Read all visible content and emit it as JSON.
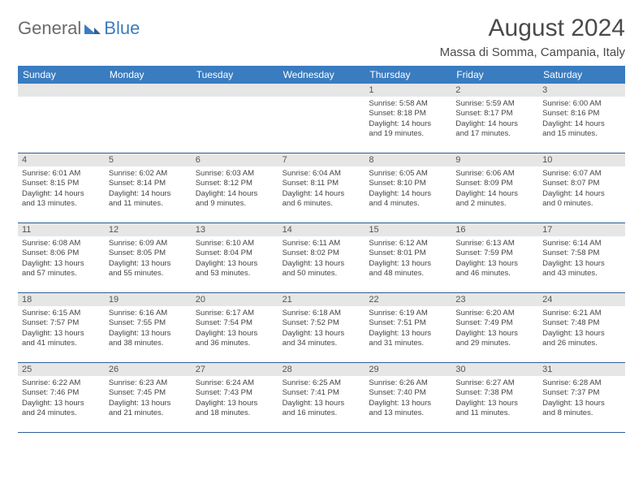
{
  "logo": {
    "text_general": "General",
    "text_blue": "Blue"
  },
  "title": "August 2024",
  "location": "Massa di Somma, Campania, Italy",
  "colors": {
    "header_bg": "#3a7cc0",
    "header_text": "#ffffff",
    "daynum_bg": "#e6e6e6",
    "border": "#2e5f94",
    "body_text": "#444444",
    "title_text": "#4a4a4a"
  },
  "layout": {
    "columns": 7,
    "rows": 5,
    "leading_blanks": 4
  },
  "weekdays": [
    "Sunday",
    "Monday",
    "Tuesday",
    "Wednesday",
    "Thursday",
    "Friday",
    "Saturday"
  ],
  "days": [
    {
      "n": "1",
      "sr": "Sunrise: 5:58 AM",
      "ss": "Sunset: 8:18 PM",
      "d1": "Daylight: 14 hours",
      "d2": "and 19 minutes."
    },
    {
      "n": "2",
      "sr": "Sunrise: 5:59 AM",
      "ss": "Sunset: 8:17 PM",
      "d1": "Daylight: 14 hours",
      "d2": "and 17 minutes."
    },
    {
      "n": "3",
      "sr": "Sunrise: 6:00 AM",
      "ss": "Sunset: 8:16 PM",
      "d1": "Daylight: 14 hours",
      "d2": "and 15 minutes."
    },
    {
      "n": "4",
      "sr": "Sunrise: 6:01 AM",
      "ss": "Sunset: 8:15 PM",
      "d1": "Daylight: 14 hours",
      "d2": "and 13 minutes."
    },
    {
      "n": "5",
      "sr": "Sunrise: 6:02 AM",
      "ss": "Sunset: 8:14 PM",
      "d1": "Daylight: 14 hours",
      "d2": "and 11 minutes."
    },
    {
      "n": "6",
      "sr": "Sunrise: 6:03 AM",
      "ss": "Sunset: 8:12 PM",
      "d1": "Daylight: 14 hours",
      "d2": "and 9 minutes."
    },
    {
      "n": "7",
      "sr": "Sunrise: 6:04 AM",
      "ss": "Sunset: 8:11 PM",
      "d1": "Daylight: 14 hours",
      "d2": "and 6 minutes."
    },
    {
      "n": "8",
      "sr": "Sunrise: 6:05 AM",
      "ss": "Sunset: 8:10 PM",
      "d1": "Daylight: 14 hours",
      "d2": "and 4 minutes."
    },
    {
      "n": "9",
      "sr": "Sunrise: 6:06 AM",
      "ss": "Sunset: 8:09 PM",
      "d1": "Daylight: 14 hours",
      "d2": "and 2 minutes."
    },
    {
      "n": "10",
      "sr": "Sunrise: 6:07 AM",
      "ss": "Sunset: 8:07 PM",
      "d1": "Daylight: 14 hours",
      "d2": "and 0 minutes."
    },
    {
      "n": "11",
      "sr": "Sunrise: 6:08 AM",
      "ss": "Sunset: 8:06 PM",
      "d1": "Daylight: 13 hours",
      "d2": "and 57 minutes."
    },
    {
      "n": "12",
      "sr": "Sunrise: 6:09 AM",
      "ss": "Sunset: 8:05 PM",
      "d1": "Daylight: 13 hours",
      "d2": "and 55 minutes."
    },
    {
      "n": "13",
      "sr": "Sunrise: 6:10 AM",
      "ss": "Sunset: 8:04 PM",
      "d1": "Daylight: 13 hours",
      "d2": "and 53 minutes."
    },
    {
      "n": "14",
      "sr": "Sunrise: 6:11 AM",
      "ss": "Sunset: 8:02 PM",
      "d1": "Daylight: 13 hours",
      "d2": "and 50 minutes."
    },
    {
      "n": "15",
      "sr": "Sunrise: 6:12 AM",
      "ss": "Sunset: 8:01 PM",
      "d1": "Daylight: 13 hours",
      "d2": "and 48 minutes."
    },
    {
      "n": "16",
      "sr": "Sunrise: 6:13 AM",
      "ss": "Sunset: 7:59 PM",
      "d1": "Daylight: 13 hours",
      "d2": "and 46 minutes."
    },
    {
      "n": "17",
      "sr": "Sunrise: 6:14 AM",
      "ss": "Sunset: 7:58 PM",
      "d1": "Daylight: 13 hours",
      "d2": "and 43 minutes."
    },
    {
      "n": "18",
      "sr": "Sunrise: 6:15 AM",
      "ss": "Sunset: 7:57 PM",
      "d1": "Daylight: 13 hours",
      "d2": "and 41 minutes."
    },
    {
      "n": "19",
      "sr": "Sunrise: 6:16 AM",
      "ss": "Sunset: 7:55 PM",
      "d1": "Daylight: 13 hours",
      "d2": "and 38 minutes."
    },
    {
      "n": "20",
      "sr": "Sunrise: 6:17 AM",
      "ss": "Sunset: 7:54 PM",
      "d1": "Daylight: 13 hours",
      "d2": "and 36 minutes."
    },
    {
      "n": "21",
      "sr": "Sunrise: 6:18 AM",
      "ss": "Sunset: 7:52 PM",
      "d1": "Daylight: 13 hours",
      "d2": "and 34 minutes."
    },
    {
      "n": "22",
      "sr": "Sunrise: 6:19 AM",
      "ss": "Sunset: 7:51 PM",
      "d1": "Daylight: 13 hours",
      "d2": "and 31 minutes."
    },
    {
      "n": "23",
      "sr": "Sunrise: 6:20 AM",
      "ss": "Sunset: 7:49 PM",
      "d1": "Daylight: 13 hours",
      "d2": "and 29 minutes."
    },
    {
      "n": "24",
      "sr": "Sunrise: 6:21 AM",
      "ss": "Sunset: 7:48 PM",
      "d1": "Daylight: 13 hours",
      "d2": "and 26 minutes."
    },
    {
      "n": "25",
      "sr": "Sunrise: 6:22 AM",
      "ss": "Sunset: 7:46 PM",
      "d1": "Daylight: 13 hours",
      "d2": "and 24 minutes."
    },
    {
      "n": "26",
      "sr": "Sunrise: 6:23 AM",
      "ss": "Sunset: 7:45 PM",
      "d1": "Daylight: 13 hours",
      "d2": "and 21 minutes."
    },
    {
      "n": "27",
      "sr": "Sunrise: 6:24 AM",
      "ss": "Sunset: 7:43 PM",
      "d1": "Daylight: 13 hours",
      "d2": "and 18 minutes."
    },
    {
      "n": "28",
      "sr": "Sunrise: 6:25 AM",
      "ss": "Sunset: 7:41 PM",
      "d1": "Daylight: 13 hours",
      "d2": "and 16 minutes."
    },
    {
      "n": "29",
      "sr": "Sunrise: 6:26 AM",
      "ss": "Sunset: 7:40 PM",
      "d1": "Daylight: 13 hours",
      "d2": "and 13 minutes."
    },
    {
      "n": "30",
      "sr": "Sunrise: 6:27 AM",
      "ss": "Sunset: 7:38 PM",
      "d1": "Daylight: 13 hours",
      "d2": "and 11 minutes."
    },
    {
      "n": "31",
      "sr": "Sunrise: 6:28 AM",
      "ss": "Sunset: 7:37 PM",
      "d1": "Daylight: 13 hours",
      "d2": "and 8 minutes."
    }
  ]
}
